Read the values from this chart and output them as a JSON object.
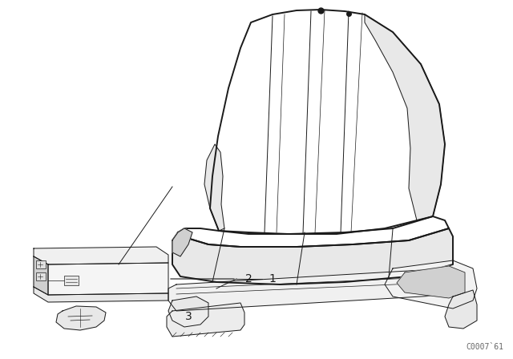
{
  "background_color": "#ffffff",
  "fig_width": 6.4,
  "fig_height": 4.48,
  "dpi": 100,
  "watermark": "C0007`61",
  "line_color": "#1a1a1a",
  "fill_color": "#ffffff",
  "shade_color": "#e8e8e8",
  "dark_shade": "#d0d0d0",
  "text_fontsize": 9,
  "watermark_fontsize": 7,
  "lw_main": 1.4,
  "lw_thin": 0.7,
  "lw_dashed": 0.8
}
